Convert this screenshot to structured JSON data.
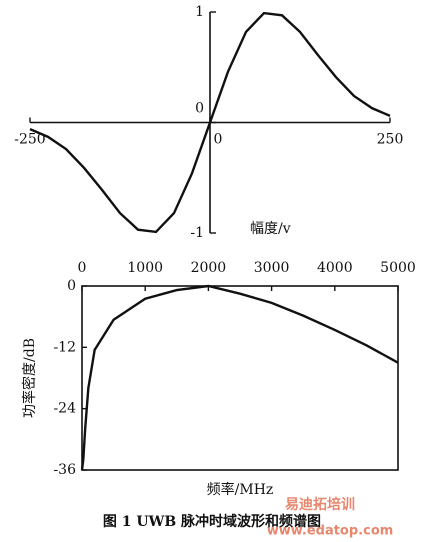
{
  "chart_data": [
    {
      "type": "line",
      "axis_label": "幅度/v",
      "color": "#111111",
      "x": [
        -250,
        -225,
        -200,
        -175,
        -150,
        -125,
        -100,
        -75,
        -50,
        -25,
        0,
        25,
        50,
        75,
        100,
        125,
        150,
        175,
        200,
        225,
        250
      ],
      "values": [
        -0.06,
        -0.13,
        -0.24,
        -0.41,
        -0.61,
        -0.82,
        -0.97,
        -0.99,
        -0.82,
        -0.46,
        0,
        0.46,
        0.82,
        0.99,
        0.97,
        0.82,
        0.61,
        0.41,
        0.24,
        0.13,
        0.06
      ],
      "xlim": [
        -250,
        250
      ],
      "xticks": [
        -250,
        0,
        250
      ],
      "ylim": [
        -1,
        1
      ],
      "yticks": [
        -1,
        0,
        1
      ]
    },
    {
      "type": "line",
      "xlabel": "频率/MHz",
      "ylabel": "功率密度/dB",
      "color": "#111111",
      "x": [
        0,
        20,
        50,
        100,
        200,
        500,
        1000,
        1500,
        2000,
        2500,
        3000,
        3500,
        4000,
        4500,
        5000
      ],
      "values": [
        -36,
        -34,
        -28,
        -20,
        -12.5,
        -6.6,
        -2.5,
        -0.8,
        0,
        -1.5,
        -3.3,
        -5.8,
        -8.6,
        -11.6,
        -15
      ],
      "xlim": [
        0,
        5000
      ],
      "xticks": [
        0,
        1000,
        2000,
        3000,
        4000,
        5000
      ],
      "ylim": [
        -36,
        0
      ],
      "yticks": [
        0,
        -12,
        -24,
        -36
      ]
    }
  ],
  "caption": "图 1  UWB 脉冲时域波形和频谱图",
  "watermark": {
    "brand": "易迪拓培训",
    "url": "www.edatop.com"
  }
}
